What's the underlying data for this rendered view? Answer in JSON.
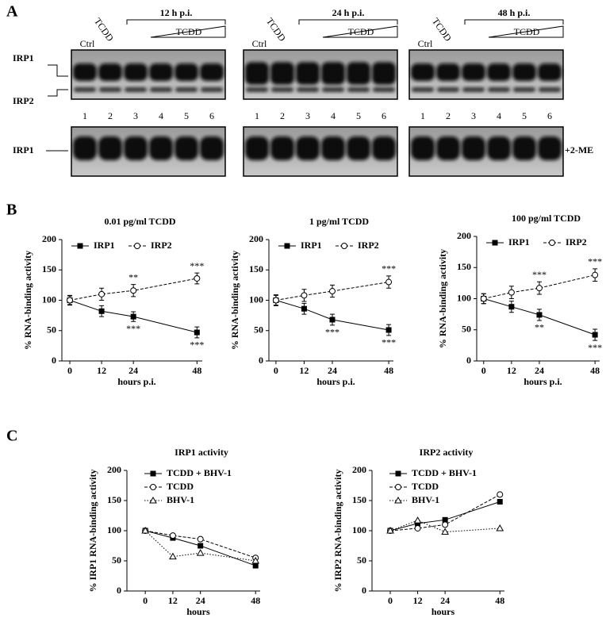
{
  "panel_labels": [
    "A",
    "B",
    "C"
  ],
  "gel": {
    "left_labels": [
      "IRP1",
      "IRP2"
    ],
    "bottom_label": "IRP1",
    "treatment": "+2-ME",
    "groups": [
      {
        "title": "12 h p.i.",
        "ctrl": "Ctrl",
        "tcdd": "TCDD",
        "dose": "TCDD",
        "lanes": [
          1,
          2,
          3,
          4,
          5,
          6
        ]
      },
      {
        "title": "24 h p.i.",
        "ctrl": "Ctrl",
        "tcdd": "TCDD",
        "dose": "TCDD",
        "lanes": [
          1,
          2,
          3,
          4,
          5,
          6
        ]
      },
      {
        "title": "48 h p.i.",
        "ctrl": "Ctrl",
        "tcdd": "TCDD",
        "dose": "TCDD",
        "lanes": [
          1,
          2,
          3,
          4,
          5,
          6
        ]
      }
    ]
  },
  "chart_data": [
    {
      "type": "line",
      "title": "0.01 pg/ml TCDD",
      "x_label": "hours p.i.",
      "y_label": "% RNA-binding activity",
      "x": [
        0,
        12,
        24,
        48
      ],
      "xlim": [
        -3,
        50
      ],
      "ylim": [
        0,
        200
      ],
      "xticks": [
        0,
        12,
        24,
        48
      ],
      "yticks": [
        0,
        50,
        100,
        150,
        200
      ],
      "legend": "upper left",
      "legend_layout": "row",
      "series": [
        {
          "name": "IRP1",
          "color": "#000000",
          "marker": "square",
          "line_style": "solid",
          "values": [
            100,
            82,
            73,
            47
          ],
          "errors": [
            8,
            9,
            8,
            9
          ],
          "significance": [
            null,
            null,
            "***",
            "***"
          ]
        },
        {
          "name": "IRP2",
          "color": "#000000",
          "marker": "circle",
          "line_style": "dashed",
          "values": [
            100,
            110,
            116,
            136
          ],
          "errors": [
            7,
            10,
            10,
            9
          ],
          "significance": [
            null,
            null,
            "**",
            "***"
          ]
        }
      ]
    },
    {
      "type": "line",
      "title": "1 pg/ml TCDD",
      "x_label": "hours p.i.",
      "y_label": "% RNA-binding activity",
      "x": [
        0,
        12,
        24,
        48
      ],
      "xlim": [
        -3,
        50
      ],
      "ylim": [
        0,
        200
      ],
      "xticks": [
        0,
        12,
        24,
        48
      ],
      "yticks": [
        0,
        50,
        100,
        150,
        200
      ],
      "legend": "upper left",
      "legend_layout": "row",
      "series": [
        {
          "name": "IRP1",
          "color": "#000000",
          "marker": "square",
          "line_style": "solid",
          "values": [
            100,
            86,
            68,
            51
          ],
          "errors": [
            9,
            9,
            9,
            9
          ],
          "significance": [
            null,
            null,
            "***",
            "***"
          ]
        },
        {
          "name": "IRP2",
          "color": "#000000",
          "marker": "circle",
          "line_style": "dashed",
          "values": [
            100,
            108,
            115,
            130
          ],
          "errors": [
            8,
            10,
            10,
            10
          ],
          "significance": [
            null,
            null,
            null,
            "***"
          ]
        }
      ]
    },
    {
      "type": "line",
      "title": "100 pg/ml TCDD",
      "x_label": "hours p.i.",
      "y_label": "% RNA-binding activity",
      "x": [
        0,
        12,
        24,
        48
      ],
      "xlim": [
        -3,
        50
      ],
      "ylim": [
        0,
        200
      ],
      "xticks": [
        0,
        12,
        24,
        48
      ],
      "yticks": [
        0,
        50,
        100,
        150,
        200
      ],
      "legend": "upper left",
      "legend_layout": "row",
      "series": [
        {
          "name": "IRP1",
          "color": "#000000",
          "marker": "square",
          "line_style": "solid",
          "values": [
            100,
            87,
            74,
            42
          ],
          "errors": [
            8,
            9,
            9,
            9
          ],
          "significance": [
            null,
            null,
            "**",
            "***"
          ]
        },
        {
          "name": "IRP2",
          "color": "#000000",
          "marker": "circle",
          "line_style": "dashed",
          "values": [
            100,
            110,
            117,
            138
          ],
          "errors": [
            8,
            10,
            10,
            10
          ],
          "significance": [
            null,
            null,
            "***",
            "***"
          ]
        }
      ]
    },
    {
      "type": "line",
      "title": "IRP1 activity",
      "x_label": "hours",
      "y_label": "% IRP1 RNA-binding activity",
      "x": [
        0,
        12,
        24,
        48
      ],
      "xlim": [
        -8,
        50
      ],
      "ylim": [
        0,
        200
      ],
      "xticks": [
        0,
        12,
        24,
        48
      ],
      "yticks": [
        0,
        50,
        100,
        150,
        200
      ],
      "legend": "upper left",
      "legend_layout": "column",
      "series": [
        {
          "name": "TCDD + BHV-1",
          "color": "#000000",
          "marker": "square",
          "line_style": "solid",
          "values": [
            100,
            88,
            75,
            42
          ]
        },
        {
          "name": "TCDD",
          "color": "#000000",
          "marker": "circle",
          "line_style": "dashed",
          "values": [
            100,
            92,
            86,
            55
          ]
        },
        {
          "name": "BHV-1",
          "color": "#000000",
          "marker": "triangle",
          "line_style": "dotted",
          "values": [
            100,
            57,
            63,
            50
          ]
        }
      ]
    },
    {
      "type": "line",
      "title": "IRP2 activity",
      "x_label": "hours",
      "y_label": "% IRP2 RNA-binding activity",
      "x": [
        0,
        12,
        24,
        48
      ],
      "xlim": [
        -8,
        50
      ],
      "ylim": [
        0,
        200
      ],
      "xticks": [
        0,
        12,
        24,
        48
      ],
      "yticks": [
        0,
        50,
        100,
        150,
        200
      ],
      "legend": "upper left",
      "legend_layout": "column",
      "series": [
        {
          "name": "TCDD + BHV-1",
          "color": "#000000",
          "marker": "square",
          "line_style": "solid",
          "values": [
            100,
            112,
            118,
            148
          ]
        },
        {
          "name": "TCDD",
          "color": "#000000",
          "marker": "circle",
          "line_style": "dashed",
          "values": [
            100,
            104,
            110,
            160
          ]
        },
        {
          "name": "BHV-1",
          "color": "#000000",
          "marker": "triangle",
          "line_style": "dotted",
          "values": [
            100,
            117,
            98,
            104
          ]
        }
      ]
    }
  ]
}
